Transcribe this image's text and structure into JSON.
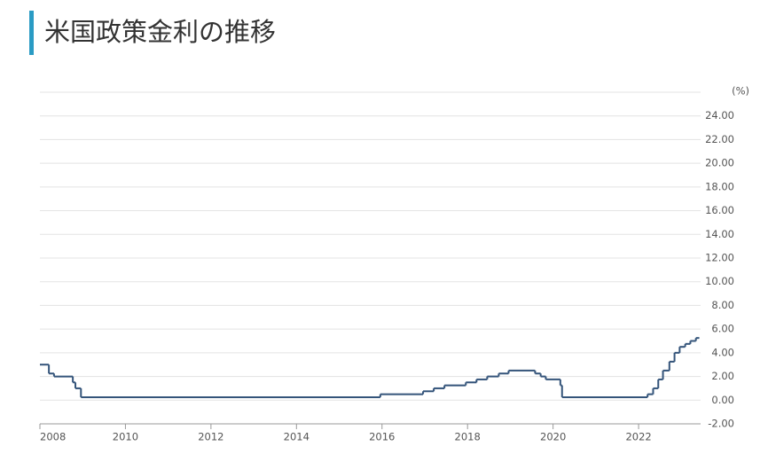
{
  "chart_data": {
    "type": "line",
    "step": "post",
    "title": "米国政策金利の推移",
    "y_unit": "(%)",
    "x": [
      2008.0,
      2008.21,
      2008.33,
      2008.77,
      2008.83,
      2008.96,
      2015.96,
      2016.96,
      2017.21,
      2017.46,
      2017.96,
      2018.21,
      2018.46,
      2018.73,
      2018.96,
      2019.58,
      2019.71,
      2019.83,
      2020.17,
      2020.21,
      2022.21,
      2022.34,
      2022.46,
      2022.57,
      2022.72,
      2022.84,
      2022.96,
      2023.09,
      2023.21,
      2023.34,
      2023.42
    ],
    "values": [
      3.0,
      2.25,
      2.0,
      1.5,
      1.0,
      0.25,
      0.5,
      0.75,
      1.0,
      1.25,
      1.5,
      1.75,
      2.0,
      2.25,
      2.5,
      2.25,
      2.0,
      1.75,
      1.25,
      0.25,
      0.5,
      1.0,
      1.75,
      2.5,
      3.25,
      4.0,
      4.5,
      4.75,
      5.0,
      5.25,
      5.25
    ],
    "color": "#34547a",
    "xlim": [
      2008,
      2023.45
    ],
    "xticks": [
      2008,
      2010,
      2012,
      2014,
      2016,
      2018,
      2020,
      2022
    ],
    "ylim": [
      -2,
      26
    ],
    "yticks": [
      {
        "value": -2,
        "label": "-2.00"
      },
      {
        "value": 0,
        "label": "0.00"
      },
      {
        "value": 2,
        "label": "2.00"
      },
      {
        "value": 4,
        "label": "4.00"
      },
      {
        "value": 6,
        "label": "6.00"
      },
      {
        "value": 8,
        "label": "8.00"
      },
      {
        "value": 10,
        "label": "10.00"
      },
      {
        "value": 12,
        "label": "12.00"
      },
      {
        "value": 14,
        "label": "14.00"
      },
      {
        "value": 16,
        "label": "16.00"
      },
      {
        "value": 18,
        "label": "18.00"
      },
      {
        "value": 20,
        "label": "20.00"
      },
      {
        "value": 22,
        "label": "22.00"
      },
      {
        "value": 24,
        "label": "24.00"
      }
    ],
    "grid": true
  }
}
